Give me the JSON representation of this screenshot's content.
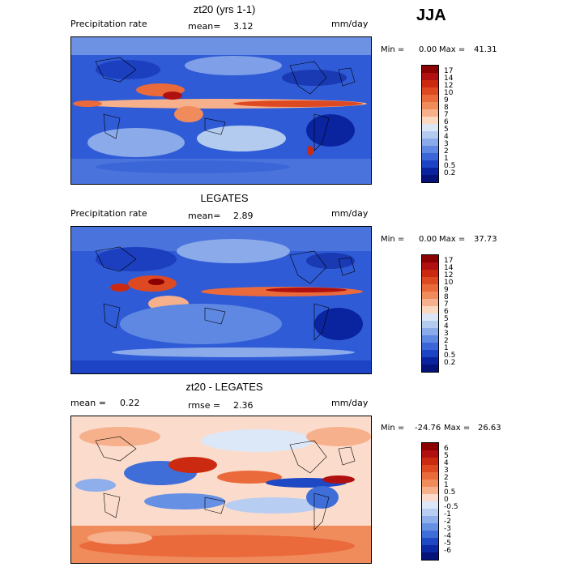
{
  "season": "JJA",
  "panels": [
    {
      "title": "zt20 (yrs 1-1)",
      "left_label": "Precipitation rate",
      "stat1_label": "mean=",
      "stat1_value": "3.12",
      "stat2_label": "",
      "stat2_value": "",
      "units": "mm/day",
      "min_label": "Min =",
      "min_value": "0.00",
      "max_label": "Max =",
      "max_value": "41.31",
      "levels": [
        "17",
        "14",
        "12",
        "10",
        "9",
        "8",
        "7",
        "6",
        "5",
        "4",
        "3",
        "2",
        "1",
        "0.5",
        "0.2"
      ],
      "colors": [
        "#8b0000",
        "#b01010",
        "#cc2a10",
        "#dd4a22",
        "#ea6a3c",
        "#f08c5c",
        "#f6b08c",
        "#fbd8c0",
        "#dbe6f6",
        "#b4cbf0",
        "#8aaaea",
        "#5f88e2",
        "#3a66d8",
        "#1c44c4",
        "#0a24a0",
        "#04127a"
      ]
    },
    {
      "title": "LEGATES",
      "left_label": "Precipitation rate",
      "stat1_label": "mean=",
      "stat1_value": "2.89",
      "stat2_label": "",
      "stat2_value": "",
      "units": "mm/day",
      "min_label": "Min =",
      "min_value": "0.00",
      "max_label": "Max =",
      "max_value": "37.73",
      "levels": [
        "17",
        "14",
        "12",
        "10",
        "9",
        "8",
        "7",
        "6",
        "5",
        "4",
        "3",
        "2",
        "1",
        "0.5",
        "0.2"
      ],
      "colors": [
        "#8b0000",
        "#b01010",
        "#cc2a10",
        "#dd4a22",
        "#ea6a3c",
        "#f08c5c",
        "#f6b08c",
        "#fbd8c0",
        "#dbe6f6",
        "#b4cbf0",
        "#8aaaea",
        "#5f88e2",
        "#3a66d8",
        "#1c44c4",
        "#0a24a0",
        "#04127a"
      ]
    },
    {
      "title": "zt20 - LEGATES",
      "left_label": "",
      "stat1_label": "mean =",
      "stat1_value": "0.22",
      "stat2_label": "rmse =",
      "stat2_value": "2.36",
      "units": "mm/day",
      "min_label": "Min =",
      "min_value": "-24.76",
      "max_label": "Max =",
      "max_value": "26.63",
      "levels": [
        "6",
        "5",
        "4",
        "3",
        "2",
        "1",
        "0.5",
        "0",
        "-0.5",
        "-1",
        "-2",
        "-3",
        "-4",
        "-5",
        "-6"
      ],
      "colors": [
        "#8b0000",
        "#b01010",
        "#cc2a10",
        "#dd4a22",
        "#ea6a3c",
        "#f08c5c",
        "#f6b08c",
        "#fbdccc",
        "#dce8f8",
        "#b8cdf2",
        "#8eaeec",
        "#6690e4",
        "#406ed8",
        "#1f48c4",
        "#0c28a4",
        "#04127a"
      ]
    }
  ]
}
